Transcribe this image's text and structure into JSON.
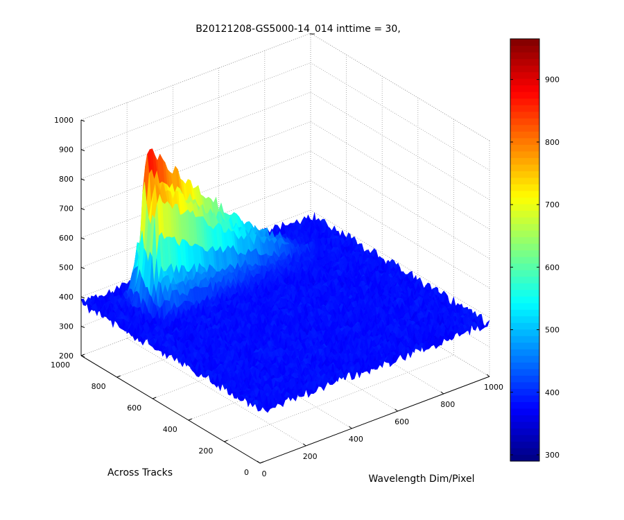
{
  "chart_data": {
    "type": "surface3d",
    "title": "B20121208-GS5000-14_014 inttime = 30,",
    "xlabel": "Wavelength Dim/Pixel",
    "ylabel": "Across Tracks",
    "zlabel": "",
    "xlim": [
      0,
      1000
    ],
    "ylim": [
      0,
      1000
    ],
    "zlim": [
      200,
      1000
    ],
    "x_ticks": [
      "0",
      "200",
      "400",
      "600",
      "800",
      "1000"
    ],
    "y_ticks": [
      "0",
      "200",
      "400",
      "600",
      "800",
      "1000"
    ],
    "z_ticks": [
      "200",
      "300",
      "400",
      "500",
      "600",
      "700",
      "800",
      "900",
      "1000"
    ],
    "colorbar": {
      "colormap": "jet",
      "range": [
        290,
        965
      ],
      "ticks": [
        "300",
        "400",
        "500",
        "600",
        "700",
        "800",
        "900"
      ]
    },
    "grid": true,
    "surface": {
      "baseline_level": 380,
      "noise_amplitude": 40,
      "peak_value": 950,
      "peak_location": {
        "x": 170,
        "y": 830
      },
      "peak_span_x": [
        100,
        900
      ],
      "peak_span_y": [
        700,
        940
      ],
      "description_values": [
        {
          "x": 0,
          "y": 0,
          "z": 380
        },
        {
          "x": 1000,
          "y": 0,
          "z": 390
        },
        {
          "x": 0,
          "y": 1000,
          "z": 395
        },
        {
          "x": 1000,
          "y": 1000,
          "z": 400
        },
        {
          "x": 170,
          "y": 830,
          "z": 950
        },
        {
          "x": 400,
          "y": 830,
          "z": 700
        },
        {
          "x": 700,
          "y": 830,
          "z": 480
        }
      ]
    }
  }
}
